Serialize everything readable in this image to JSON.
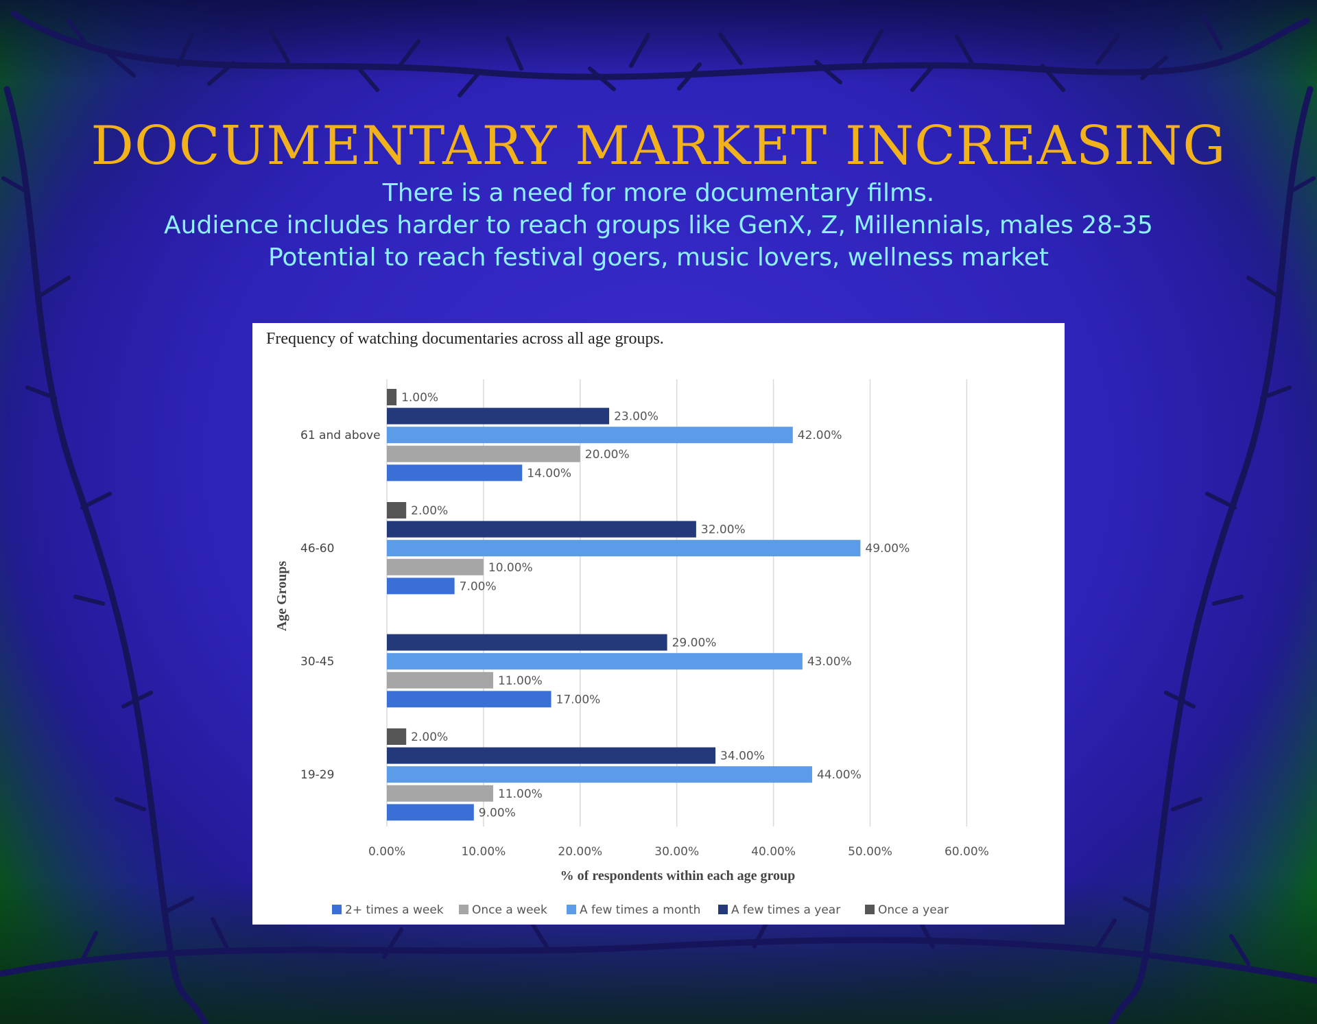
{
  "slide": {
    "title": "DOCUMENTARY MARKET INCREASING",
    "subtitle_lines": [
      "There is a need for more documentary films.",
      "Audience includes harder to reach groups like GenX, Z, Millennials, males 28-35",
      "Potential to reach festival goers, music lovers, wellness market"
    ]
  },
  "colors": {
    "title": "#f2b21c",
    "subtitle": "#8fefff"
  },
  "chart_data": {
    "type": "bar",
    "orientation": "horizontal",
    "title": "Frequency of watching documentaries across all age groups.",
    "xlabel": "% of respondents within each age group",
    "ylabel": "Age Groups",
    "xlim": [
      0,
      60
    ],
    "x_ticks": [
      "0.00%",
      "10.00%",
      "20.00%",
      "30.00%",
      "40.00%",
      "50.00%",
      "60.00%"
    ],
    "categories": [
      "61 and above",
      "46-60",
      "30-45",
      "19-29"
    ],
    "series": [
      {
        "name": "2+ times a week",
        "color": "#3a6fd6",
        "values": [
          14,
          7,
          17,
          9
        ],
        "labels": [
          "14.00%",
          "7.00%",
          "17.00%",
          "9.00%"
        ]
      },
      {
        "name": "Once a week",
        "color": "#a6a6a6",
        "values": [
          20,
          10,
          11,
          11
        ],
        "labels": [
          "20.00%",
          "10.00%",
          "11.00%",
          "11.00%"
        ]
      },
      {
        "name": "A few times a month",
        "color": "#5b9be8",
        "values": [
          42,
          49,
          43,
          44
        ],
        "labels": [
          "42.00%",
          "49.00%",
          "43.00%",
          "44.00%"
        ]
      },
      {
        "name": "A few times a year",
        "color": "#24397a",
        "values": [
          23,
          32,
          29,
          34
        ],
        "labels": [
          "23.00%",
          "32.00%",
          "29.00%",
          "34.00%"
        ]
      },
      {
        "name": "Once a year",
        "color": "#555555",
        "values": [
          1,
          2,
          null,
          2
        ],
        "labels": [
          "1.00%",
          "2.00%",
          "",
          "2.00%"
        ]
      }
    ],
    "grid": true,
    "legend_position": "bottom"
  }
}
